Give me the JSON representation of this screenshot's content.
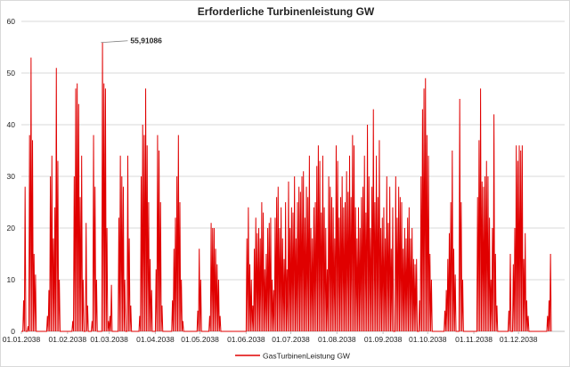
{
  "chart_data": {
    "type": "line",
    "title": "Erforderliche Turbinenleistung  GW",
    "xlabel": "",
    "ylabel": "",
    "x_range": [
      "2038-01-01",
      "2038-12-31"
    ],
    "ylim": [
      0,
      60
    ],
    "y_ticks": [
      0,
      10,
      20,
      30,
      40,
      50,
      60
    ],
    "x_ticks": [
      "01.01.2038",
      "01.02.2038",
      "01.03.2038",
      "01.04.2038",
      "01.05.2038",
      "01.06.2038",
      "01.07.2038",
      "01.08.2038",
      "01.09.2038",
      "01.10.2038",
      "01.11.2038",
      "01.12.2038"
    ],
    "grid": {
      "horizontal": true,
      "vertical": false
    },
    "legend": {
      "position": "bottom"
    },
    "annotations": [
      {
        "text": "55,91086",
        "date": "2038-02-23",
        "value": 55.91086
      }
    ],
    "series": [
      {
        "name": "GasTurbinenLeistung GW",
        "color": "#e00000",
        "daily_peak_values": [
          0,
          6,
          28,
          0,
          1,
          38,
          53,
          37,
          15,
          11,
          0,
          0,
          0,
          0,
          0,
          0,
          0,
          3,
          8,
          30,
          34,
          18,
          24,
          51,
          33,
          10,
          0,
          0,
          0,
          0,
          0,
          0,
          0,
          0,
          2,
          30,
          47,
          48,
          44,
          26,
          34,
          10,
          0,
          21,
          5,
          0,
          0,
          2,
          38,
          28,
          10,
          0,
          0,
          0,
          55.91086,
          48,
          47,
          20,
          2,
          3,
          9,
          0,
          0,
          0,
          0,
          22,
          34,
          30,
          28,
          10,
          0,
          34,
          18,
          5,
          0,
          0,
          0,
          0,
          0,
          3,
          30,
          40,
          38,
          47,
          36,
          25,
          14,
          8,
          0,
          0,
          12,
          38,
          35,
          25,
          5,
          0,
          0,
          0,
          0,
          0,
          0,
          6,
          16,
          22,
          30,
          38,
          25,
          10,
          2,
          0,
          0,
          0,
          0,
          0,
          0,
          0,
          0,
          0,
          4,
          16,
          10,
          0,
          0,
          0,
          0,
          0,
          3,
          21,
          20,
          20,
          16,
          13,
          10,
          3,
          0,
          0,
          0,
          0,
          0,
          0,
          0,
          0,
          0,
          0,
          0,
          0,
          0,
          0,
          0,
          0,
          0,
          18,
          24,
          13,
          10,
          5,
          16,
          22,
          19,
          20,
          18,
          25,
          23,
          12,
          15,
          20,
          21,
          22,
          10,
          8,
          22,
          26,
          28,
          20,
          24,
          18,
          14,
          25,
          12,
          29,
          20,
          24,
          23,
          30,
          18,
          25,
          28,
          27,
          30,
          31,
          22,
          28,
          26,
          34,
          20,
          18,
          24,
          25,
          32,
          36,
          33,
          23,
          34,
          24,
          20,
          12,
          30,
          28,
          26,
          24,
          18,
          36,
          33,
          22,
          26,
          30,
          24,
          25,
          31,
          27,
          34,
          26,
          38,
          36,
          24,
          18,
          24,
          20,
          26,
          28,
          34,
          23,
          40,
          30,
          20,
          28,
          43,
          25,
          34,
          26,
          37,
          20,
          22,
          24,
          18,
          30,
          21,
          28,
          16,
          24,
          0,
          30,
          22,
          28,
          26,
          25,
          16,
          20,
          18,
          22,
          24,
          18,
          20,
          14,
          13,
          14,
          0,
          6,
          30,
          43,
          47,
          49,
          38,
          34,
          15,
          10,
          0,
          0,
          0,
          0,
          0,
          0,
          0,
          0,
          4,
          8,
          14,
          19,
          25,
          35,
          16,
          11,
          0,
          0,
          45,
          25,
          10,
          0,
          0,
          0,
          0,
          0,
          0,
          0,
          0,
          0,
          26,
          37,
          47,
          29,
          28,
          30,
          33,
          30,
          22,
          10,
          20,
          42,
          15,
          5,
          0,
          0,
          0,
          0,
          0,
          0,
          0,
          4,
          15,
          0,
          13,
          20,
          36,
          33,
          36,
          35,
          36,
          14,
          19,
          6,
          3,
          0,
          0,
          0,
          0,
          0,
          0,
          0,
          0,
          0,
          0,
          0,
          0,
          3,
          6,
          15
        ]
      }
    ]
  }
}
